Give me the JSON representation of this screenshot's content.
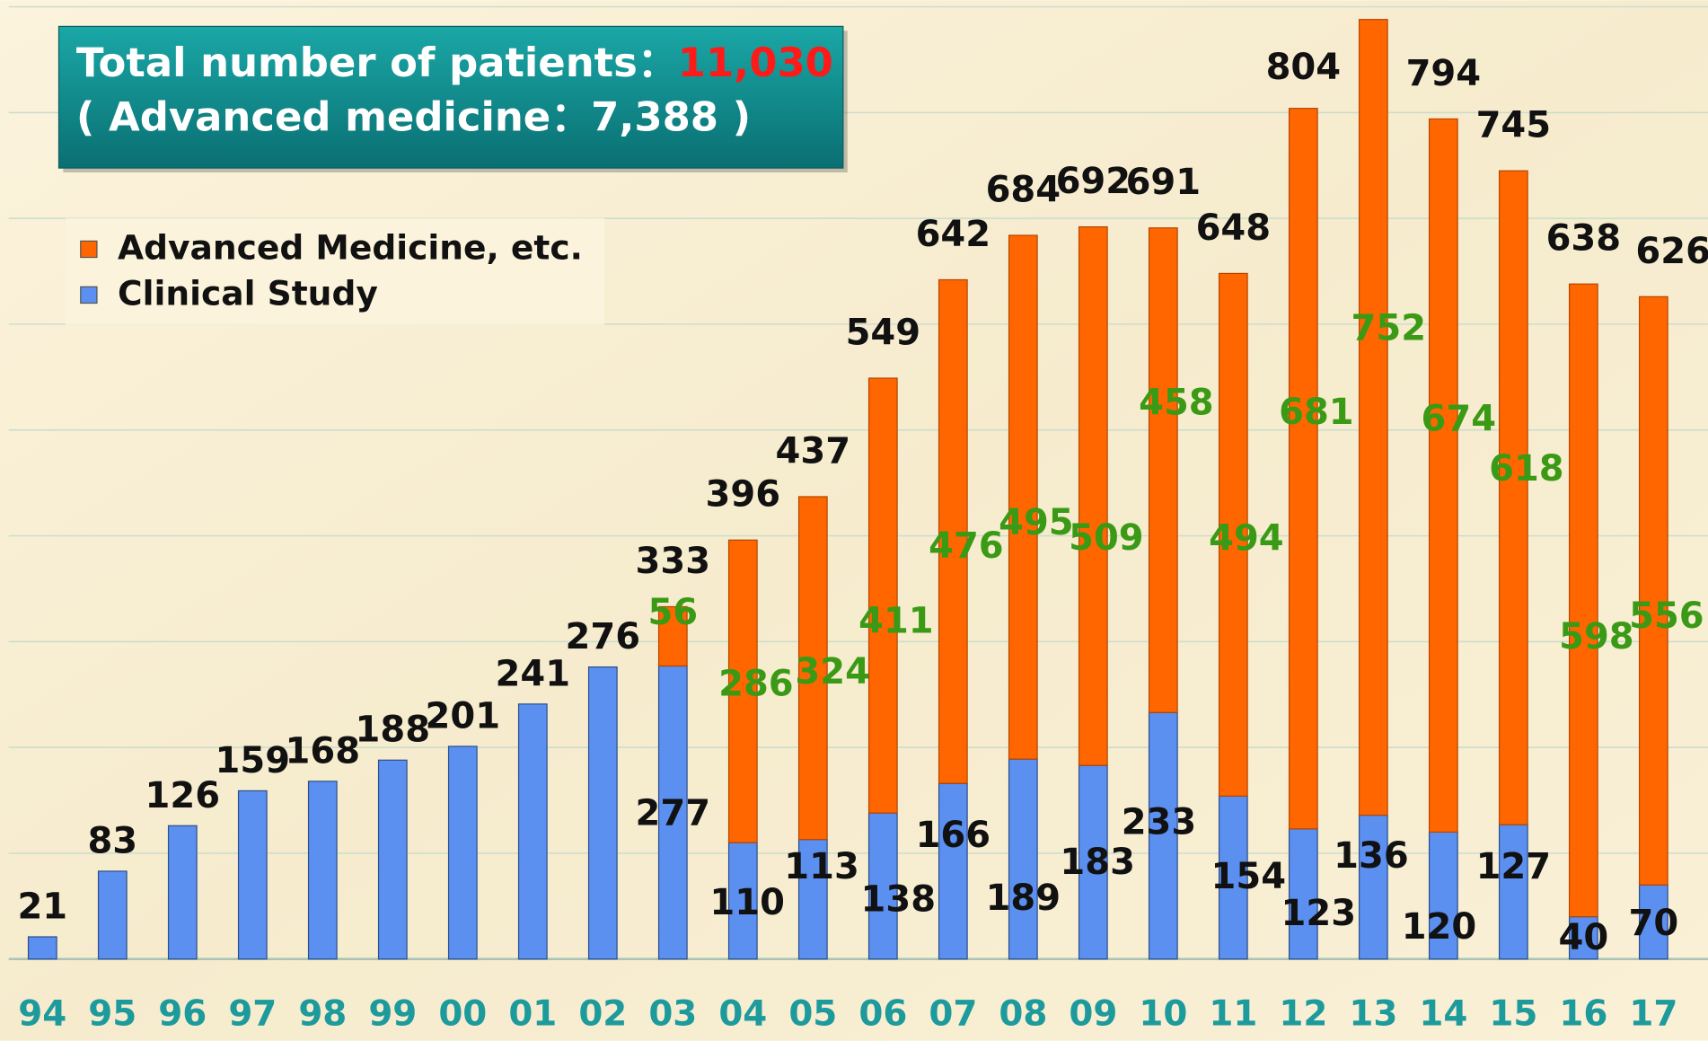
{
  "chart_data": {
    "type": "stacked_bar",
    "title": "Total number of patients：",
    "title_total": "11,030",
    "subtitle": "( Advanced medicine：7,388 )",
    "categories": [
      "94",
      "95",
      "96",
      "97",
      "98",
      "99",
      "00",
      "01",
      "02",
      "03",
      "04",
      "05",
      "06",
      "07",
      "08",
      "09",
      "10",
      "11",
      "12",
      "13",
      "14",
      "15",
      "16",
      "17"
    ],
    "series": [
      {
        "name": "Clinical Study",
        "color": "#5b8ff0",
        "values": [
          21,
          83,
          126,
          159,
          168,
          188,
          201,
          241,
          276,
          277,
          110,
          113,
          138,
          166,
          189,
          183,
          233,
          154,
          123,
          136,
          120,
          127,
          40,
          70
        ]
      },
      {
        "name": "Advanced Medicine, etc.",
        "color": "#ff6600",
        "values": [
          null,
          null,
          null,
          null,
          null,
          null,
          null,
          null,
          null,
          56,
          286,
          324,
          411,
          476,
          495,
          509,
          458,
          494,
          681,
          752,
          674,
          618,
          598,
          556
        ]
      }
    ],
    "totals": [
      null,
      null,
      null,
      null,
      null,
      null,
      null,
      null,
      null,
      333,
      396,
      437,
      549,
      642,
      684,
      692,
      691,
      648,
      804,
      null,
      794,
      745,
      638,
      626
    ],
    "ylim": [
      0,
      900
    ],
    "yticks": [
      0,
      100,
      200,
      300,
      400,
      500,
      600,
      700,
      800,
      900
    ],
    "grid": true,
    "legend": "top-left"
  }
}
